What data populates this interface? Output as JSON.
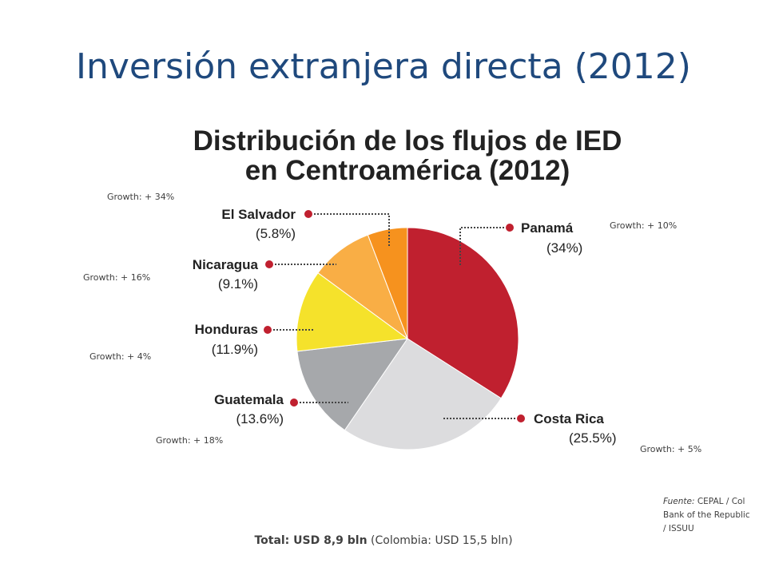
{
  "slide": {
    "title": "Inversión extranjera directa (2012)"
  },
  "chart_data": {
    "type": "pie",
    "title": "Distribución de los flujos de IED\nen Centroamérica (2012)",
    "title_lines": [
      "Distribución de los flujos de IED",
      "en Centroamérica (2012)"
    ],
    "slices": [
      {
        "name": "Panamá",
        "value": 34,
        "label": "(34%)",
        "color": "#c0202f"
      },
      {
        "name": "Costa Rica",
        "value": 25.5,
        "label": "(25.5%)",
        "color": "#dcdcde"
      },
      {
        "name": "Guatemala",
        "value": 13.6,
        "label": "(13.6%)",
        "color": "#a6a8ab"
      },
      {
        "name": "Honduras",
        "value": 11.9,
        "label": "(11.9%)",
        "color": "#f5e22b"
      },
      {
        "name": "Nicaragua",
        "value": 9.1,
        "label": "(9.1%)",
        "color": "#f9ae45"
      },
      {
        "name": "El Salvador",
        "value": 5.8,
        "label": "(5.8%)",
        "color": "#f6921e"
      }
    ],
    "start": "top",
    "direction": "clockwise",
    "leader_dot_color": "#c0202f"
  },
  "growth_notes": {
    "el_salvador": "Growth: + 34%",
    "panama": "Growth: + 10%",
    "nicaragua": "Growth: + 16%",
    "honduras": "Growth: + 4%",
    "guatemala": "Growth: + 18%",
    "costa_rica": "Growth: + 5%"
  },
  "source": {
    "label": "Fuente:",
    "text": " CEPAL / Col Bank of the Republic / ISSUU"
  },
  "total": {
    "strong": "Total: USD 8,9 bln",
    "rest": " (Colombia: USD 15,5 bln)"
  }
}
